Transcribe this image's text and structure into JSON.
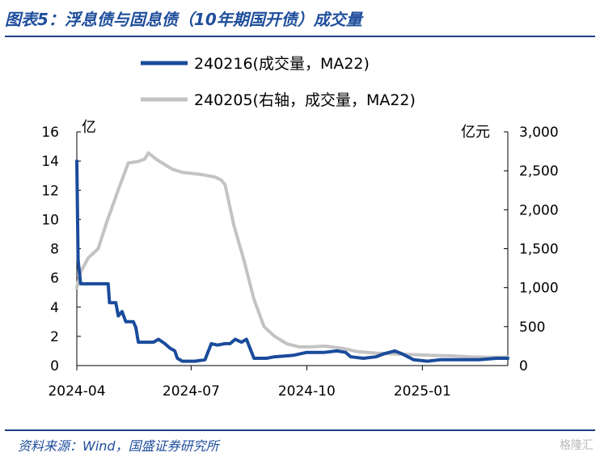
{
  "header": {
    "title": "图表5：浮息债与固息债（10年期国开债）成交量"
  },
  "footer": {
    "source": "资料来源：Wind，国盛证券研究所",
    "watermark": "格隆汇"
  },
  "chart_data": {
    "type": "line",
    "y_unit_left": "亿",
    "y_unit_right": "亿元",
    "left_axis": {
      "ylim": [
        0,
        16
      ],
      "ticks": [
        "0",
        "2",
        "4",
        "6",
        "8",
        "10",
        "12",
        "14",
        "16"
      ]
    },
    "right_axis": {
      "ylim": [
        0,
        3000
      ],
      "ticks": [
        "0",
        "500",
        "1,000",
        "1,500",
        "2,000",
        "2,500",
        "3,000"
      ]
    },
    "x_axis": {
      "range": [
        "2024-04-01",
        "2025-03-10"
      ],
      "ticks": [
        "2024-04",
        "2024-07",
        "2024-10",
        "2025-01"
      ]
    },
    "grid": false,
    "legend_position": "top",
    "colors": {
      "blue": "#1a4b9c",
      "gray": "#c3c3c3"
    },
    "series": [
      {
        "name": "240216(成交量，MA22)",
        "axis": "left",
        "color": "#1a4b9c",
        "points": [
          [
            "2024-04-01",
            14
          ],
          [
            "2024-04-02",
            7.2
          ],
          [
            "2024-04-04",
            5.6
          ],
          [
            "2024-04-26",
            5.6
          ],
          [
            "2024-04-27",
            4.3
          ],
          [
            "2024-05-02",
            4.3
          ],
          [
            "2024-05-04",
            3.4
          ],
          [
            "2024-05-07",
            3.7
          ],
          [
            "2024-05-10",
            3.0
          ],
          [
            "2024-05-16",
            3.0
          ],
          [
            "2024-05-18",
            2.6
          ],
          [
            "2024-05-20",
            1.6
          ],
          [
            "2024-06-01",
            1.6
          ],
          [
            "2024-06-05",
            1.8
          ],
          [
            "2024-06-10",
            1.5
          ],
          [
            "2024-06-14",
            1.2
          ],
          [
            "2024-06-18",
            1.0
          ],
          [
            "2024-06-20",
            0.5
          ],
          [
            "2024-06-24",
            0.3
          ],
          [
            "2024-07-04",
            0.3
          ],
          [
            "2024-07-12",
            0.4
          ],
          [
            "2024-07-17",
            1.5
          ],
          [
            "2024-07-22",
            1.4
          ],
          [
            "2024-07-28",
            1.5
          ],
          [
            "2024-08-01",
            1.5
          ],
          [
            "2024-08-05",
            1.8
          ],
          [
            "2024-08-10",
            1.6
          ],
          [
            "2024-08-14",
            1.8
          ],
          [
            "2024-08-20",
            0.5
          ],
          [
            "2024-08-30",
            0.5
          ],
          [
            "2024-09-05",
            0.6
          ],
          [
            "2024-09-20",
            0.7
          ],
          [
            "2024-10-01",
            0.9
          ],
          [
            "2024-10-15",
            0.9
          ],
          [
            "2024-10-25",
            1.0
          ],
          [
            "2024-11-01",
            0.9
          ],
          [
            "2024-11-05",
            0.6
          ],
          [
            "2024-11-15",
            0.5
          ],
          [
            "2024-11-25",
            0.6
          ],
          [
            "2024-12-01",
            0.8
          ],
          [
            "2024-12-10",
            1.0
          ],
          [
            "2024-12-16",
            0.8
          ],
          [
            "2024-12-25",
            0.4
          ],
          [
            "2025-01-05",
            0.3
          ],
          [
            "2025-01-15",
            0.4
          ],
          [
            "2025-02-01",
            0.4
          ],
          [
            "2025-02-15",
            0.4
          ],
          [
            "2025-03-01",
            0.5
          ],
          [
            "2025-03-10",
            0.5
          ]
        ]
      },
      {
        "name": "240205(右轴，成交量，MA22)",
        "axis": "right",
        "color": "#c3c3c3",
        "points": [
          [
            "2024-04-01",
            1000
          ],
          [
            "2024-04-04",
            1200
          ],
          [
            "2024-04-10",
            1380
          ],
          [
            "2024-04-18",
            1500
          ],
          [
            "2024-04-25",
            1850
          ],
          [
            "2024-05-05",
            2300
          ],
          [
            "2024-05-12",
            2600
          ],
          [
            "2024-05-20",
            2620
          ],
          [
            "2024-05-25",
            2650
          ],
          [
            "2024-05-28",
            2730
          ],
          [
            "2024-06-03",
            2650
          ],
          [
            "2024-06-10",
            2580
          ],
          [
            "2024-06-16",
            2520
          ],
          [
            "2024-06-24",
            2480
          ],
          [
            "2024-06-30",
            2470
          ],
          [
            "2024-07-10",
            2450
          ],
          [
            "2024-07-20",
            2420
          ],
          [
            "2024-07-25",
            2380
          ],
          [
            "2024-07-28",
            2320
          ],
          [
            "2024-08-04",
            1800
          ],
          [
            "2024-08-12",
            1350
          ],
          [
            "2024-08-20",
            850
          ],
          [
            "2024-08-28",
            500
          ],
          [
            "2024-09-05",
            380
          ],
          [
            "2024-09-15",
            280
          ],
          [
            "2024-09-25",
            240
          ],
          [
            "2024-10-05",
            240
          ],
          [
            "2024-10-15",
            250
          ],
          [
            "2024-10-30",
            220
          ],
          [
            "2024-11-10",
            180
          ],
          [
            "2024-11-25",
            160
          ],
          [
            "2024-12-10",
            150
          ],
          [
            "2024-12-25",
            140
          ],
          [
            "2025-01-10",
            130
          ],
          [
            "2025-01-25",
            125
          ],
          [
            "2025-02-10",
            110
          ],
          [
            "2025-02-25",
            105
          ],
          [
            "2025-03-10",
            110
          ]
        ]
      }
    ]
  }
}
